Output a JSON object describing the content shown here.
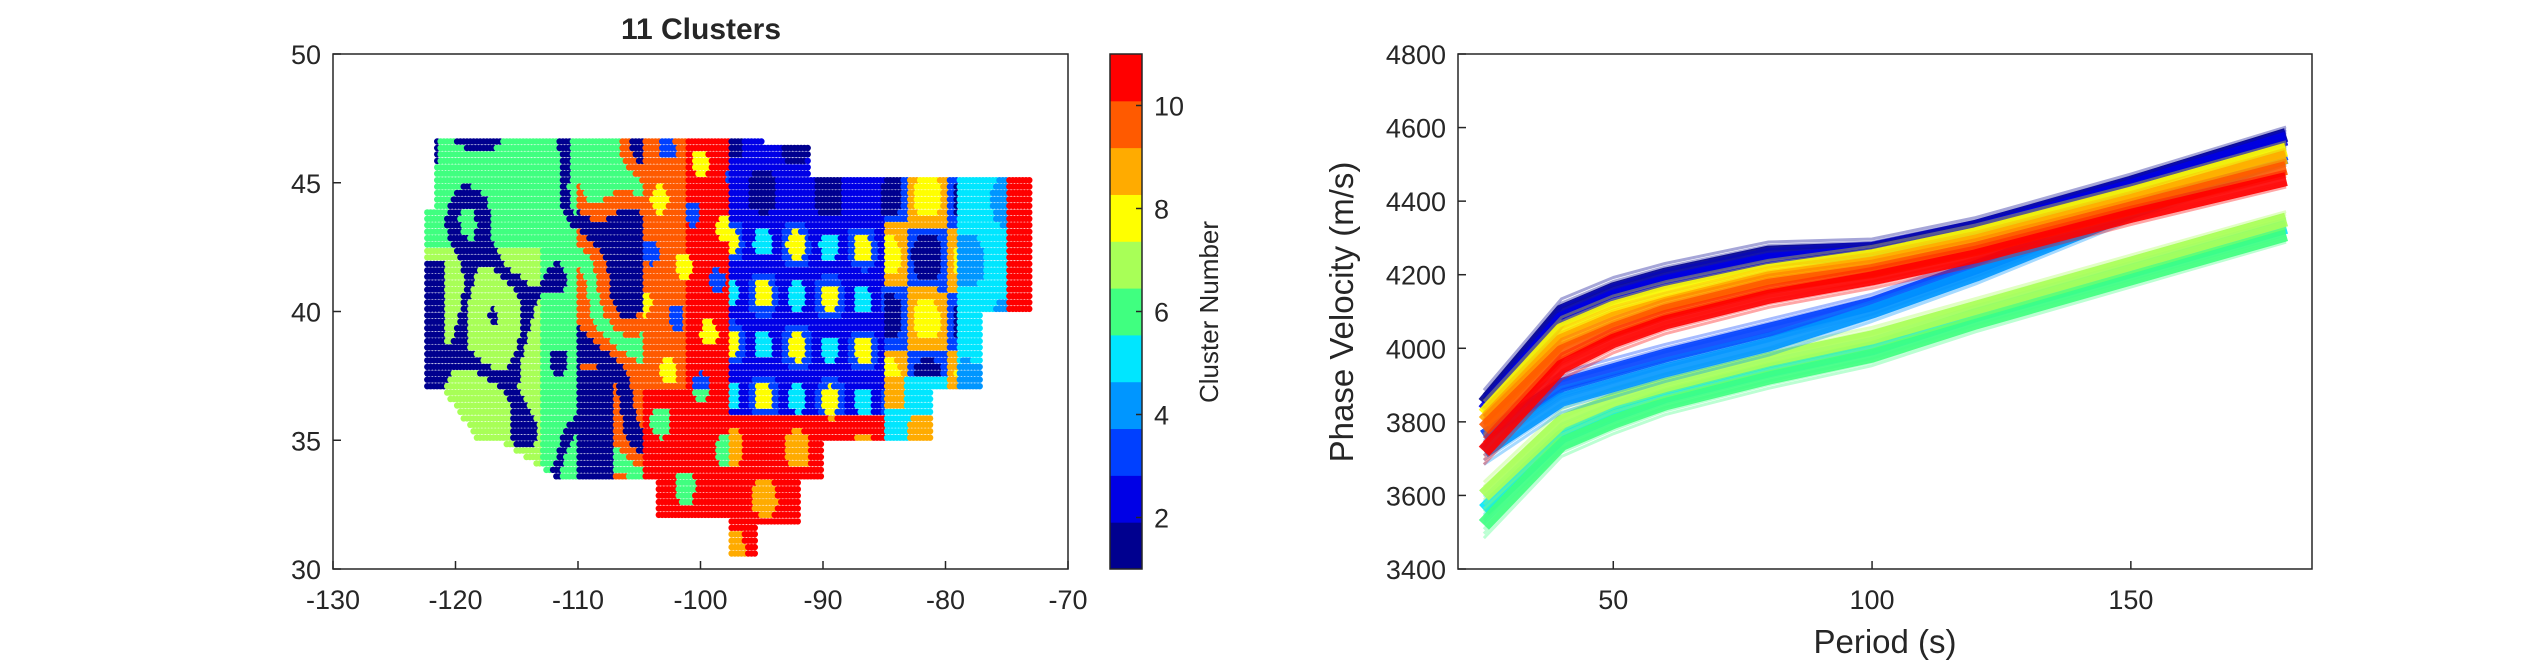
{
  "chart_data": [
    {
      "type": "scatter",
      "title": "11 Clusters",
      "xlabel": "",
      "ylabel": "",
      "xlim": [
        -130,
        -70
      ],
      "ylim": [
        30,
        50
      ],
      "xticks": [
        -130,
        -120,
        -110,
        -100,
        -90,
        -80,
        -70
      ],
      "yticks": [
        30,
        35,
        40,
        45,
        50
      ],
      "xtick_labels": [
        "-130",
        "-120",
        "-110",
        "-100",
        "-90",
        "-80",
        "-70"
      ],
      "ytick_labels": [
        "30",
        "35",
        "40",
        "45",
        "50"
      ],
      "grid": false,
      "colormap": "jet",
      "colorbar": {
        "label": "Cluster Number",
        "range": [
          1,
          11
        ],
        "ticks": [
          2,
          4,
          6,
          8,
          10
        ],
        "tick_labels": [
          "2",
          "4",
          "6",
          "8",
          "10"
        ],
        "colors": [
          "#00008f",
          "#0000e6",
          "#0040ff",
          "#0096ff",
          "#00e6ff",
          "#40ff80",
          "#a8ff57",
          "#ffff00",
          "#ffab00",
          "#ff5a00",
          "#ff0000"
        ]
      },
      "regions": [
        {
          "cluster": 6,
          "lon_range": [
            -122,
            -110
          ],
          "lat_range": [
            35,
            47
          ]
        },
        {
          "cluster": 7,
          "lon_range": [
            -122,
            -112
          ],
          "lat_range": [
            33,
            45
          ]
        },
        {
          "cluster": 1,
          "lon_range": [
            -122,
            -105
          ],
          "lat_range": [
            35,
            47
          ]
        },
        {
          "cluster": 10,
          "lon_range": [
            -106,
            -97
          ],
          "lat_range": [
            33,
            47
          ]
        },
        {
          "cluster": 11,
          "lon_range": [
            -103,
            -90
          ],
          "lat_range": [
            31,
            38
          ]
        },
        {
          "cluster": 3,
          "lon_range": [
            -100,
            -85
          ],
          "lat_range": [
            36,
            47
          ]
        },
        {
          "cluster": 2,
          "lon_range": [
            -95,
            -85
          ],
          "lat_range": [
            38,
            47
          ]
        },
        {
          "cluster": 8,
          "lon_range": [
            -90,
            -78
          ],
          "lat_range": [
            38,
            45
          ]
        },
        {
          "cluster": 9,
          "lon_range": [
            -92,
            -80
          ],
          "lat_range": [
            33,
            42
          ]
        },
        {
          "cluster": 5,
          "lon_range": [
            -80,
            -75
          ],
          "lat_range": [
            35,
            45
          ]
        },
        {
          "cluster": 11,
          "lon_range": [
            -75,
            -73
          ],
          "lat_range": [
            42,
            45
          ]
        }
      ]
    },
    {
      "type": "line",
      "title": "",
      "xlabel": "Period (s)",
      "ylabel": "Phase Velocity (m/s)",
      "xlim": [
        20,
        185
      ],
      "ylim": [
        3400,
        4800
      ],
      "xticks": [
        50,
        100,
        150
      ],
      "yticks": [
        3400,
        3600,
        3800,
        4000,
        4200,
        4400,
        4600,
        4800
      ],
      "xtick_labels": [
        "50",
        "100",
        "150"
      ],
      "ytick_labels": [
        "3400",
        "3600",
        "3800",
        "4000",
        "4200",
        "4400",
        "4600",
        "4800"
      ],
      "grid": false,
      "x": [
        25,
        40,
        50,
        60,
        80,
        100,
        120,
        150,
        180
      ],
      "series": [
        {
          "cluster": 1,
          "color": "#00008f",
          "values": [
            3850,
            4100,
            4160,
            4200,
            4260,
            4270,
            4330,
            4450,
            4580
          ]
        },
        {
          "cluster": 2,
          "color": "#0000e6",
          "values": [
            3830,
            4080,
            4140,
            4180,
            4240,
            4260,
            4320,
            4440,
            4570
          ]
        },
        {
          "cluster": 3,
          "color": "#0040ff",
          "values": [
            3760,
            3900,
            3940,
            3980,
            4050,
            4120,
            4220,
            4380,
            4530
          ]
        },
        {
          "cluster": 4,
          "color": "#0096ff",
          "values": [
            3720,
            3860,
            3900,
            3940,
            4010,
            4100,
            4200,
            4370,
            4520
          ]
        },
        {
          "cluster": 5,
          "color": "#00e6ff",
          "values": [
            3560,
            3760,
            3820,
            3870,
            3940,
            4000,
            4090,
            4210,
            4330
          ]
        },
        {
          "cluster": 6,
          "color": "#40ff80",
          "values": [
            3520,
            3740,
            3800,
            3850,
            3920,
            3980,
            4070,
            4190,
            4310
          ]
        },
        {
          "cluster": 7,
          "color": "#a8ff57",
          "values": [
            3600,
            3800,
            3860,
            3900,
            3970,
            4030,
            4110,
            4230,
            4350
          ]
        },
        {
          "cluster": 8,
          "color": "#ffff00",
          "values": [
            3820,
            4050,
            4110,
            4150,
            4210,
            4250,
            4310,
            4420,
            4540
          ]
        },
        {
          "cluster": 9,
          "color": "#ffab00",
          "values": [
            3800,
            4020,
            4080,
            4120,
            4190,
            4230,
            4290,
            4400,
            4520
          ]
        },
        {
          "cluster": 10,
          "color": "#ff5a00",
          "values": [
            3780,
            3990,
            4050,
            4100,
            4170,
            4210,
            4270,
            4380,
            4490
          ]
        },
        {
          "cluster": 11,
          "color": "#ff0000",
          "values": [
            3720,
            3950,
            4020,
            4070,
            4140,
            4190,
            4250,
            4360,
            4460
          ]
        }
      ]
    }
  ]
}
